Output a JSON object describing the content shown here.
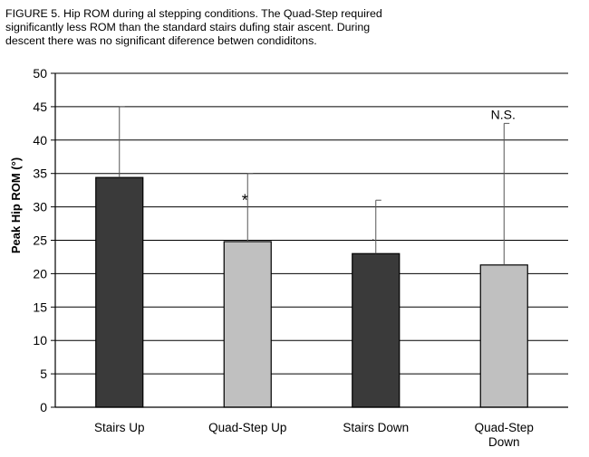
{
  "caption": {
    "line1": "FIGURE 5.  Hip ROM during al stepping conditions.  The Quad-Step required",
    "line2": "significantly less ROM than the standard stairs dufing stair ascent.  During",
    "line3": "descent there was no significant diference betwen condiditons."
  },
  "chart_data": {
    "type": "bar",
    "ylabel": "Peak Hip ROM (°)",
    "ylim": [
      0,
      50
    ],
    "yticks": [
      "0",
      "5",
      "10",
      "15",
      "20",
      "25",
      "30",
      "35",
      "40",
      "45",
      "50"
    ],
    "categories": [
      [
        "Stairs Up"
      ],
      [
        "Quad-Step Up"
      ],
      [
        "Stairs Down"
      ],
      [
        "Quad-Step",
        "Down"
      ]
    ],
    "values": [
      34.4,
      24.8,
      23.0,
      21.3
    ],
    "error_upper": [
      45.0,
      35.0,
      31.0,
      42.5
    ],
    "colors": [
      "#3a3a3a",
      "#c0c0c0",
      "#3a3a3a",
      "#c0c0c0"
    ],
    "annotations": [
      "",
      "*",
      "·",
      "N.S."
    ],
    "grid": true
  }
}
